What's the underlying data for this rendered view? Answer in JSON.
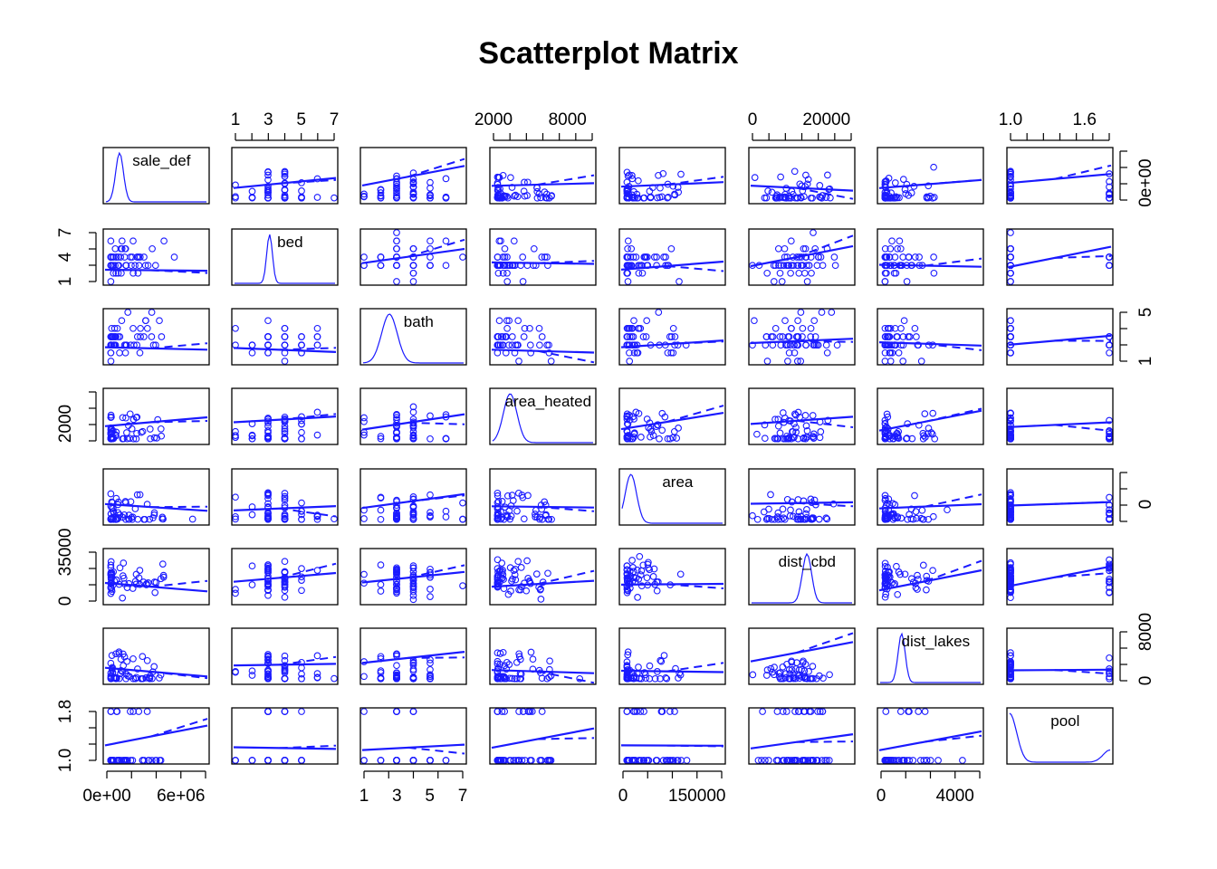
{
  "chart_data": {
    "type": "scatter",
    "title": "Scatterplot Matrix",
    "variables": [
      "sale_def",
      "bed",
      "bath",
      "area_heated",
      "area",
      "dist_cbd",
      "dist_lakes",
      "pool"
    ],
    "series_color": "#1a1aff",
    "axes": {
      "top": [
        {
          "variable": "bed",
          "range": [
            1,
            7
          ],
          "tick_labels": [
            "1",
            "3",
            "5",
            "7"
          ]
        },
        {
          "variable": "area_heated",
          "range": [
            500,
            11000
          ],
          "tick_labels": [
            "2000",
            "8000"
          ]
        },
        {
          "variable": "dist_cbd",
          "range": [
            0,
            40000
          ],
          "tick_labels": [
            "0",
            "20000"
          ]
        },
        {
          "variable": "pool",
          "range": [
            1.0,
            2.0
          ],
          "tick_labels": [
            "1.0",
            "1.6"
          ]
        }
      ],
      "bottom": [
        {
          "variable": "sale_def",
          "range": [
            0,
            8000000
          ],
          "tick_labels": [
            "0e+00",
            "6e+06"
          ]
        },
        {
          "variable": "bath",
          "range": [
            1,
            8
          ],
          "tick_labels": [
            "1",
            "3",
            "5",
            "7"
          ]
        },
        {
          "variable": "area",
          "range": [
            0,
            260000
          ],
          "tick_labels": [
            "0",
            "150000"
          ]
        },
        {
          "variable": "dist_lakes",
          "range": [
            0,
            8000
          ],
          "tick_labels": [
            "0",
            "4000"
          ]
        }
      ],
      "left": [
        {
          "variable": "bed",
          "range": [
            1,
            7
          ],
          "tick_labels": [
            "1",
            "4",
            "7"
          ]
        },
        {
          "variable": "area_heated",
          "range": [
            500,
            11000
          ],
          "tick_labels": [
            "2000"
          ]
        },
        {
          "variable": "dist_cbd",
          "range": [
            0,
            40000
          ],
          "tick_labels": [
            "0",
            "35000"
          ]
        },
        {
          "variable": "pool",
          "range": [
            1.0,
            2.0
          ],
          "tick_labels": [
            "1.0",
            "1.8"
          ]
        }
      ],
      "right": [
        {
          "variable": "sale_def",
          "range": [
            0,
            8000000
          ],
          "tick_labels": [
            "0e+00"
          ]
        },
        {
          "variable": "bath",
          "range": [
            1,
            8
          ],
          "tick_labels": [
            "1",
            "5"
          ]
        },
        {
          "variable": "area",
          "range": [
            0,
            260000
          ],
          "tick_labels": [
            "0"
          ]
        },
        {
          "variable": "dist_lakes",
          "range": [
            0,
            8000
          ],
          "tick_labels": [
            "0",
            "8000"
          ]
        }
      ]
    },
    "diagonal": "density",
    "off_diagonal": "scatter with regression line, smoother and spread",
    "grid": false,
    "legend": "none"
  }
}
